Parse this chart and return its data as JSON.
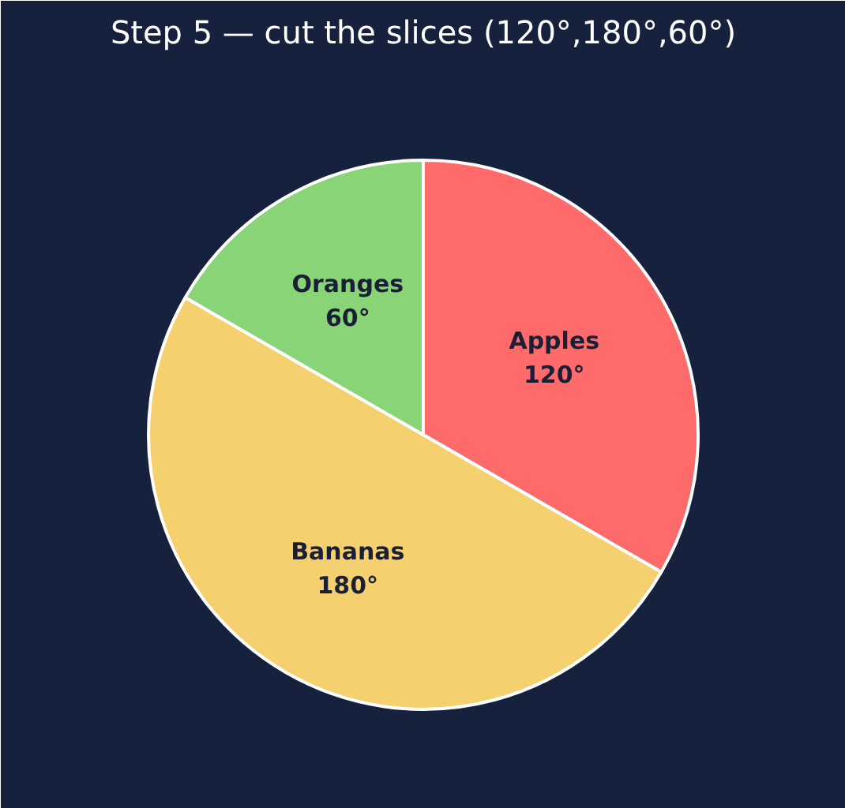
{
  "chart_data": {
    "type": "pie",
    "title": "Step 5 — cut the slices (120°,180°,60°)",
    "categories": [
      "Apples",
      "Bananas",
      "Oranges"
    ],
    "values": [
      120,
      180,
      60
    ],
    "colors": [
      "#ff6b6b",
      "#f4d06f",
      "#88d477"
    ],
    "value_labels": [
      "120°",
      "180°",
      "60°"
    ]
  }
}
